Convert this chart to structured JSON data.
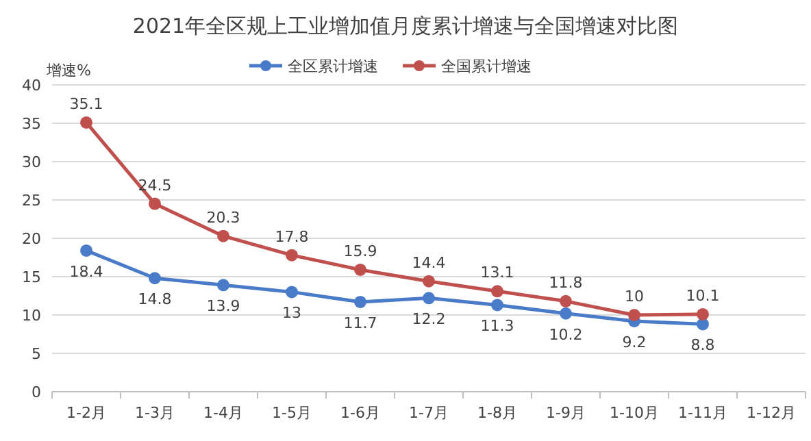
{
  "chart_data": {
    "type": "line",
    "title": "2021年全区规上工业增加值月度累计增速与全国增速对比图",
    "ylabel": "增速%",
    "categories": [
      "1-2月",
      "1-3月",
      "1-4月",
      "1-5月",
      "1-6月",
      "1-7月",
      "1-8月",
      "1-9月",
      "1-10月",
      "1-11月",
      "1-12月"
    ],
    "series": [
      {
        "name": "全区累计增速",
        "color": "#4a7bc8",
        "values": [
          18.4,
          14.8,
          13.9,
          13,
          11.7,
          12.2,
          11.3,
          10.2,
          9.2,
          8.8,
          null
        ]
      },
      {
        "name": "全国累计增速",
        "color": "#c0504d",
        "values": [
          35.1,
          24.5,
          20.3,
          17.8,
          15.9,
          14.4,
          13.1,
          11.8,
          10,
          10.1,
          null
        ]
      }
    ],
    "ylim": [
      0,
      40
    ],
    "yticks": [
      0,
      5,
      10,
      15,
      20,
      25,
      30,
      35,
      40
    ],
    "grid": "y",
    "legend": "top",
    "marker": "circle",
    "line_style": "solid",
    "data_labels": true
  }
}
